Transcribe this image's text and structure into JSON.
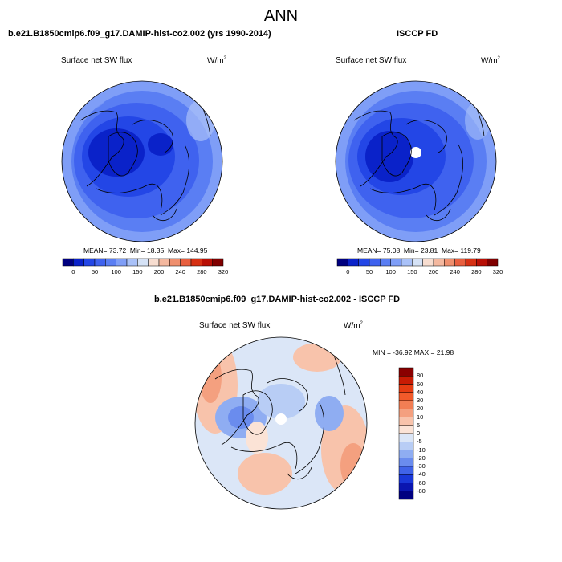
{
  "title": "ANN",
  "panels": [
    {
      "id": "test",
      "title": "b.e21.B1850cmip6.f09_g17.DAMIP-hist-co2.002 (yrs 1990-2014)",
      "variable": "Surface net SW flux",
      "units_base": "W/m",
      "units_exp": "2",
      "mean_label": "MEAN=",
      "mean": "73.72",
      "min_label": "Min=",
      "min": "18.35",
      "max_label": "Max=",
      "max": "144.95"
    },
    {
      "id": "obs",
      "title": "ISCCP FD",
      "variable": "Surface net SW flux",
      "units_base": "W/m",
      "units_exp": "2",
      "mean_label": "MEAN=",
      "mean": "75.08",
      "min_label": "Min=",
      "min": "23.81",
      "max_label": "Max=",
      "max": "119.79"
    },
    {
      "id": "diff",
      "title": "b.e21.B1850cmip6.f09_g17.DAMIP-hist-co2.002 - ISCCP FD",
      "variable": "Surface net SW flux",
      "units_base": "W/m",
      "units_exp": "2",
      "range_text": "MIN = -36.92 MAX =  21.98"
    }
  ],
  "colorbar_main": {
    "ticks": [
      "0",
      "50",
      "100",
      "150",
      "200",
      "240",
      "280",
      "320"
    ],
    "colors": [
      "#00007f",
      "#0a22c9",
      "#2346e6",
      "#3f62ef",
      "#5a7ef3",
      "#7f9ef7",
      "#a9c1f8",
      "#d5e2f6",
      "#f7ddd0",
      "#f4b89f",
      "#ef8f6e",
      "#e85f3f",
      "#d63013",
      "#b80f05",
      "#800000"
    ]
  },
  "colorbar_diff": {
    "ticks": [
      "80",
      "60",
      "40",
      "30",
      "20",
      "10",
      "5",
      "0",
      "-5",
      "-10",
      "-20",
      "-30",
      "-40",
      "-60",
      "-80"
    ],
    "colors": [
      "#8a0000",
      "#c81b04",
      "#e63c12",
      "#f25a2a",
      "#f27e54",
      "#f4a07f",
      "#f8c3ab",
      "#fbe3d6",
      "#dbe6f7",
      "#b8cdf5",
      "#8fadf2",
      "#6a8cee",
      "#4063e8",
      "#1a38d8",
      "#0a16b0",
      "#000080"
    ]
  }
}
